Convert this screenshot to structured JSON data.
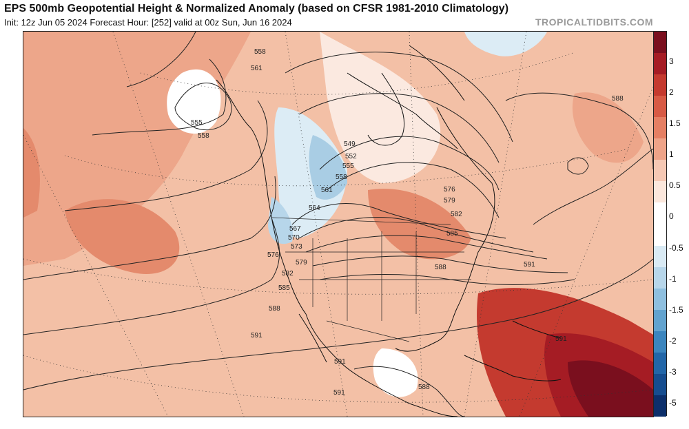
{
  "header": {
    "title": "EPS 500mb Geopotential Height & Normalized Anomaly (based on CFSR 1981-2010 Climatology)",
    "subtitle": "Init: 12z Jun 05 2024   Forecast Hour: [252]   valid at 00z Sun, Jun 16 2024",
    "brand": "TROPICALTIDBITS.COM"
  },
  "colorbar": {
    "labels": [
      "3",
      "2",
      "1.5",
      "1",
      "0.5",
      "0",
      "-0.5",
      "-1",
      "-1.5",
      "-2",
      "-3",
      "-5"
    ],
    "colors": [
      "#7a0f1e",
      "#a51c24",
      "#c43a2f",
      "#d75a45",
      "#e57f63",
      "#eea388",
      "#f5c8b4",
      "#fbe7dc",
      "#ffffff",
      "#ffffff",
      "#d9eaf4",
      "#b7d6ea",
      "#8ebfdf",
      "#62a3cf",
      "#3b85be",
      "#2266a8",
      "#164d8f",
      "#0c2f6b"
    ]
  },
  "contour_labels": [
    "558",
    "561",
    "555",
    "558",
    "549",
    "552",
    "555",
    "558",
    "561",
    "564",
    "567",
    "570",
    "573",
    "576",
    "579",
    "582",
    "585",
    "588",
    "591",
    "591",
    "591",
    "588",
    "576",
    "579",
    "582",
    "585",
    "588",
    "591",
    "588",
    "591"
  ],
  "anomaly_colors": {
    "strong_positive": "#a51c24",
    "moderate_positive": "#e57f63",
    "weak_positive": "#f5c8b4",
    "neutral": "#fbe9e0",
    "weak_negative": "#d9eaf4",
    "moderate_negative": "#b7d6ea"
  }
}
